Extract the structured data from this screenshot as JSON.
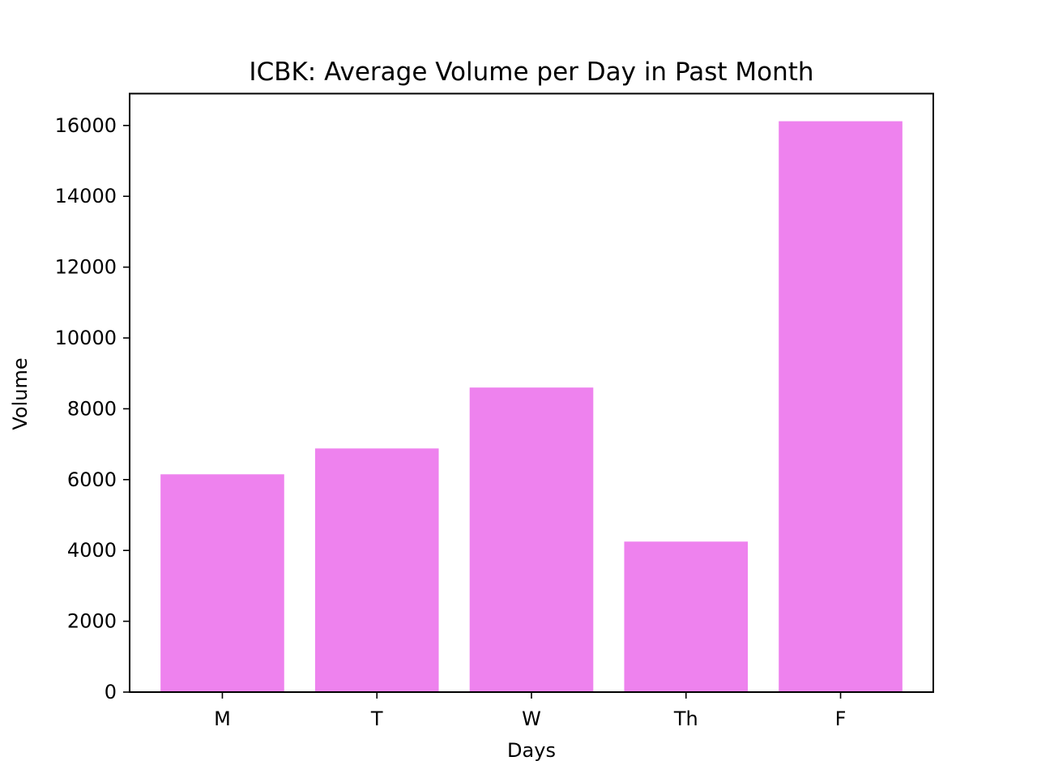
{
  "chart_data": {
    "type": "bar",
    "title": "ICBK: Average Volume per Day in Past Month",
    "xlabel": "Days",
    "ylabel": "Volume",
    "categories": [
      "M",
      "T",
      "W",
      "Th",
      "F"
    ],
    "values": [
      6150,
      6880,
      8600,
      4250,
      16120
    ],
    "ylim": [
      0,
      16900
    ],
    "yticks": [
      0,
      2000,
      4000,
      6000,
      8000,
      10000,
      12000,
      14000,
      16000
    ],
    "bar_color": "#ee82ee",
    "grid": false,
    "legend": "none"
  }
}
